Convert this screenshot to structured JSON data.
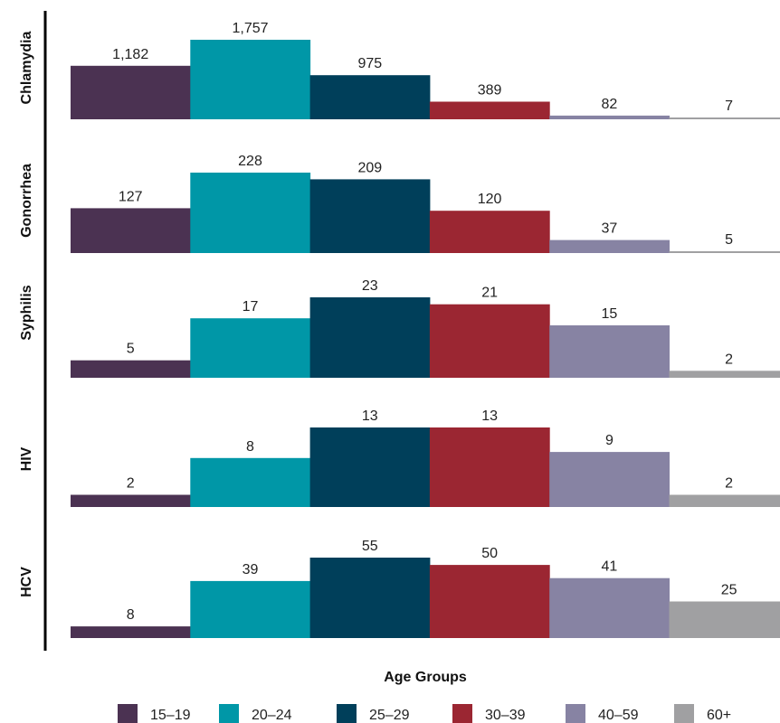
{
  "chart_data": {
    "type": "bar",
    "orientation": "grouped-panels",
    "xlabel": "Age Groups",
    "legend_position": "bottom",
    "categories": [
      "Chlamydia",
      "Gonorrhea",
      "Syphilis",
      "HIV",
      "HCV"
    ],
    "series": [
      {
        "name": "15–19",
        "color": "#4b3252",
        "values": [
          1182,
          127,
          5,
          2,
          8
        ],
        "labels": [
          "1,182",
          "127",
          "5",
          "2",
          "8"
        ]
      },
      {
        "name": "20–24",
        "color": "#0097a7",
        "values": [
          1757,
          228,
          17,
          8,
          39
        ],
        "labels": [
          "1,757",
          "228",
          "17",
          "8",
          "39"
        ]
      },
      {
        "name": "25–29",
        "color": "#003f5a",
        "values": [
          975,
          209,
          23,
          13,
          55
        ],
        "labels": [
          "975",
          "209",
          "23",
          "13",
          "55"
        ]
      },
      {
        "name": "30–39",
        "color": "#9b2632",
        "values": [
          389,
          120,
          21,
          13,
          50
        ],
        "labels": [
          "389",
          "120",
          "21",
          "13",
          "50"
        ]
      },
      {
        "name": "40–59",
        "color": "#8783a3",
        "values": [
          82,
          37,
          15,
          9,
          41
        ],
        "labels": [
          "82",
          "37",
          "15",
          "9",
          "41"
        ]
      },
      {
        "name": "60+",
        "color": "#a0a0a2",
        "values": [
          7,
          5,
          2,
          2,
          25
        ],
        "labels": [
          "7",
          "5",
          "2",
          "2",
          "25"
        ]
      }
    ]
  }
}
